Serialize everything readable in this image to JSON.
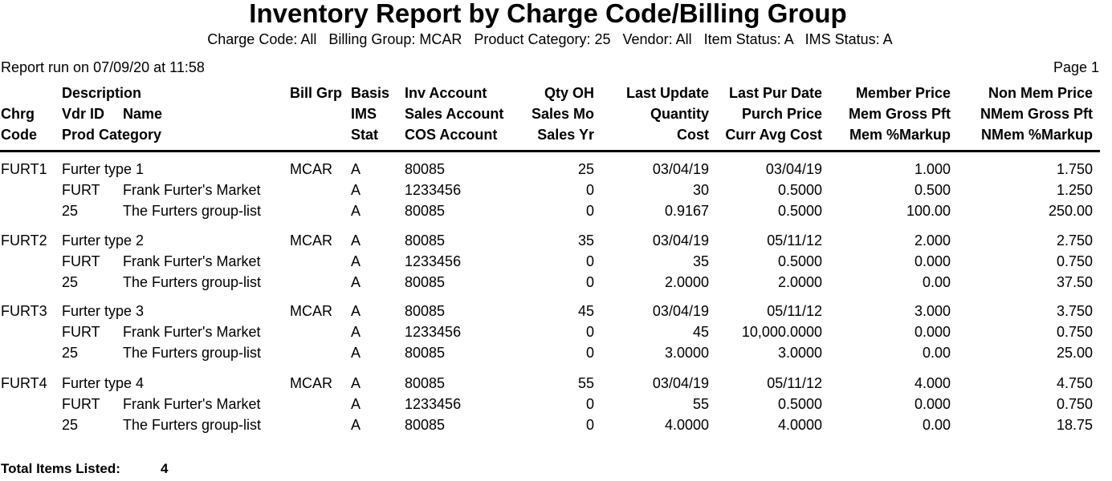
{
  "report": {
    "title": "Inventory Report by Charge Code/Billing Group",
    "subtitle": "Charge Code: All   Billing Group: MCAR   Product Category: 25   Vendor: All   Item Status: A   IMS Status: A",
    "run_info": "Report run on 07/09/20 at 11:58",
    "page": "Page 1"
  },
  "headers": {
    "chrg": [
      "",
      "Chrg",
      "Code"
    ],
    "desc": [
      "Description",
      "Vdr ID",
      "Prod Category"
    ],
    "name": [
      "",
      "Name",
      ""
    ],
    "billgrp": [
      "Bill Grp",
      "",
      ""
    ],
    "basis": [
      "Basis",
      "IMS",
      "Stat"
    ],
    "account": [
      "Inv Account",
      "Sales Account",
      "COS Account"
    ],
    "qty": [
      "Qty OH",
      "Sales Mo",
      "Sales Yr"
    ],
    "lastupd": [
      "Last Update",
      "Quantity",
      "Cost"
    ],
    "lastpur": [
      "Last Pur Date",
      "Purch Price",
      "Curr Avg Cost"
    ],
    "member": [
      "Member Price",
      "Mem Gross Pft",
      "Mem %Markup"
    ],
    "nonmem": [
      "Non Mem Price",
      "NMem Gross Pft",
      "NMem %Markup"
    ]
  },
  "items": [
    {
      "code": "FURT1",
      "description": "Furter type 1",
      "bill_grp": "MCAR",
      "basis": "A",
      "inv_account": "80085",
      "qty_oh": "25",
      "last_update": "03/04/19",
      "last_pur_date": "03/04/19",
      "member_price": "1.000",
      "nonmem_price": "1.750",
      "vdr_id": "FURT",
      "vendor_name": "Frank Furter's Market",
      "ims": "A",
      "sales_account": "1233456",
      "sales_mo": "0",
      "quantity": "30",
      "purch_price": "0.5000",
      "mem_gross": "0.500",
      "nmem_gross": "1.250",
      "prod_cat": "25",
      "cat_name": "The Furters group-list",
      "stat": "A",
      "cos_account": "80085",
      "sales_yr": "0",
      "cost": "0.9167",
      "avg_cost": "0.5000",
      "mem_markup": "100.00",
      "nmem_markup": "250.00"
    },
    {
      "code": "FURT2",
      "description": "Furter type 2",
      "bill_grp": "MCAR",
      "basis": "A",
      "inv_account": "80085",
      "qty_oh": "35",
      "last_update": "03/04/19",
      "last_pur_date": "05/11/12",
      "member_price": "2.000",
      "nonmem_price": "2.750",
      "vdr_id": "FURT",
      "vendor_name": "Frank Furter's Market",
      "ims": "A",
      "sales_account": "1233456",
      "sales_mo": "0",
      "quantity": "35",
      "purch_price": "0.5000",
      "mem_gross": "0.000",
      "nmem_gross": "0.750",
      "prod_cat": "25",
      "cat_name": "The Furters group-list",
      "stat": "A",
      "cos_account": "80085",
      "sales_yr": "0",
      "cost": "2.0000",
      "avg_cost": "2.0000",
      "mem_markup": "0.00",
      "nmem_markup": "37.50"
    },
    {
      "code": "FURT3",
      "description": "Furter type 3",
      "bill_grp": "MCAR",
      "basis": "A",
      "inv_account": "80085",
      "qty_oh": "45",
      "last_update": "03/04/19",
      "last_pur_date": "05/11/12",
      "member_price": "3.000",
      "nonmem_price": "3.750",
      "vdr_id": "FURT",
      "vendor_name": "Frank Furter's Market",
      "ims": "A",
      "sales_account": "1233456",
      "sales_mo": "0",
      "quantity": "45",
      "purch_price": "10,000.0000",
      "mem_gross": "0.000",
      "nmem_gross": "0.750",
      "prod_cat": "25",
      "cat_name": "The Furters group-list",
      "stat": "A",
      "cos_account": "80085",
      "sales_yr": "0",
      "cost": "3.0000",
      "avg_cost": "3.0000",
      "mem_markup": "0.00",
      "nmem_markup": "25.00"
    },
    {
      "code": "FURT4",
      "description": "Furter type 4",
      "bill_grp": "MCAR",
      "basis": "A",
      "inv_account": "80085",
      "qty_oh": "55",
      "last_update": "03/04/19",
      "last_pur_date": "05/11/12",
      "member_price": "4.000",
      "nonmem_price": "4.750",
      "vdr_id": "FURT",
      "vendor_name": "Frank Furter's Market",
      "ims": "A",
      "sales_account": "1233456",
      "sales_mo": "0",
      "quantity": "55",
      "purch_price": "0.5000",
      "mem_gross": "0.000",
      "nmem_gross": "0.750",
      "prod_cat": "25",
      "cat_name": "The Furters group-list",
      "stat": "A",
      "cos_account": "80085",
      "sales_yr": "0",
      "cost": "4.0000",
      "avg_cost": "4.0000",
      "mem_markup": "0.00",
      "nmem_markup": "18.75"
    }
  ],
  "footer": {
    "total_label": "Total Items Listed:",
    "total_value": "4"
  }
}
